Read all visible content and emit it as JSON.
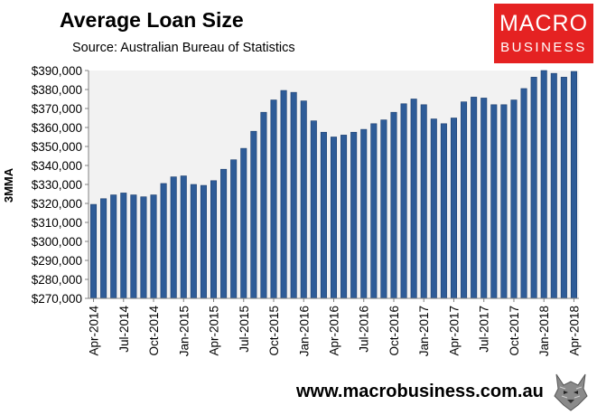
{
  "title": "Average Loan Size",
  "subtitle": "Source: Australian Bureau of Statistics",
  "logo": {
    "line1": "MACRO",
    "line2": "BUSINESS"
  },
  "website": "www.macrobusiness.com.au",
  "colors": {
    "bar": "#2e5c98",
    "bar_edge": "#1d3f6e",
    "plot_bg": "#f2f2f2",
    "logo_bg": "#e52222"
  },
  "chart_data": {
    "type": "bar",
    "title": "Average Loan Size",
    "subtitle": "Source: Australian Bureau of Statistics",
    "xlabel": "",
    "ylabel": "3MMA",
    "ylim": [
      270000,
      390000
    ],
    "yticks": [
      270000,
      280000,
      290000,
      300000,
      310000,
      320000,
      330000,
      340000,
      350000,
      360000,
      370000,
      380000,
      390000
    ],
    "ytick_labels": [
      "$270,000",
      "$280,000",
      "$290,000",
      "$300,000",
      "$310,000",
      "$320,000",
      "$330,000",
      "$340,000",
      "$350,000",
      "$360,000",
      "$370,000",
      "$380,000",
      "$390,000"
    ],
    "grid": false,
    "categories": [
      "Apr-2014",
      "May-2014",
      "Jun-2014",
      "Jul-2014",
      "Aug-2014",
      "Sep-2014",
      "Oct-2014",
      "Nov-2014",
      "Dec-2014",
      "Jan-2015",
      "Feb-2015",
      "Mar-2015",
      "Apr-2015",
      "May-2015",
      "Jun-2015",
      "Jul-2015",
      "Aug-2015",
      "Sep-2015",
      "Oct-2015",
      "Nov-2015",
      "Dec-2015",
      "Jan-2016",
      "Feb-2016",
      "Mar-2016",
      "Apr-2016",
      "May-2016",
      "Jun-2016",
      "Jul-2016",
      "Aug-2016",
      "Sep-2016",
      "Oct-2016",
      "Nov-2016",
      "Dec-2016",
      "Jan-2017",
      "Feb-2017",
      "Mar-2017",
      "Apr-2017",
      "May-2017",
      "Jun-2017",
      "Jul-2017",
      "Aug-2017",
      "Sep-2017",
      "Oct-2017",
      "Nov-2017",
      "Dec-2017",
      "Jan-2018",
      "Feb-2018",
      "Mar-2018",
      "Apr-2018"
    ],
    "x_tick_labels": [
      "Apr-2014",
      "Jul-2014",
      "Oct-2014",
      "Jan-2015",
      "Apr-2015",
      "Jul-2015",
      "Oct-2015",
      "Jan-2016",
      "Apr-2016",
      "Jul-2016",
      "Oct-2016",
      "Jan-2017",
      "Apr-2017",
      "Jul-2017",
      "Oct-2017",
      "Jan-2018",
      "Apr-2018"
    ],
    "values": [
      319500,
      322500,
      324500,
      325500,
      324500,
      323500,
      324500,
      330500,
      334000,
      334500,
      330000,
      329500,
      332000,
      338000,
      343000,
      349000,
      358000,
      368000,
      374500,
      379500,
      378500,
      374000,
      363500,
      357500,
      355000,
      356000,
      357500,
      359000,
      362000,
      364000,
      368000,
      372500,
      375000,
      372000,
      364500,
      362000,
      365000,
      373500,
      376000,
      375500,
      372000,
      372000,
      374500,
      380500,
      386500,
      390000,
      388500,
      386500,
      389500
    ]
  }
}
